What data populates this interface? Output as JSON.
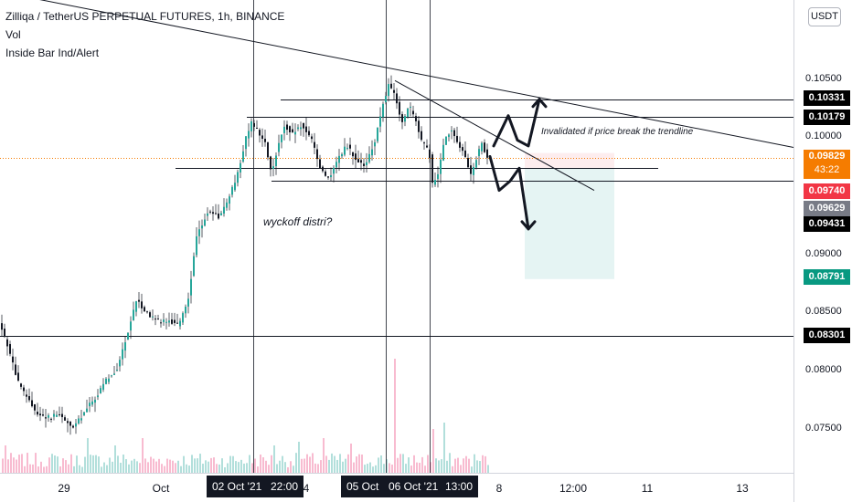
{
  "legend": {
    "symbol_line": "Zilliqa / TetherUS PERPETUAL FUTURES, 1h, BINANCE",
    "indicator_1": "Vol",
    "indicator_2": "Inside Bar Ind/Alert"
  },
  "currency_button": "USDT",
  "colors": {
    "up": "#26a69a",
    "down": "#131722",
    "wick": "#131722",
    "vol_up": "#b2dfdb",
    "vol_down": "#f8bbd0",
    "current_price": "#f57c00",
    "red_tag": "#f23645",
    "green_tag": "#089981",
    "gray_tag": "#787b86",
    "black_tag": "#000000"
  },
  "chart_data": {
    "type": "candlestick",
    "title": "Zilliqa / TetherUS PERPETUAL FUTURES, 1h, BINANCE",
    "ylim": [
      0.0705,
      0.1075
    ],
    "x_tick_labels": [
      "29",
      "Oct",
      "4",
      "8",
      "12:00",
      "11",
      "13"
    ],
    "y_tick_labels": [
      "0.10500",
      "0.10000",
      "0.09500",
      "0.09000",
      "0.08500",
      "0.08000",
      "0.07500"
    ],
    "highlighted_dates": [
      "02 Oct '21",
      "22:00",
      "05 Oct",
      "06 Oct '21",
      "13:00"
    ],
    "price_path": [
      [
        0,
        0.0841
      ],
      [
        8,
        0.0824
      ],
      [
        20,
        0.0791
      ],
      [
        34,
        0.0772
      ],
      [
        44,
        0.0762
      ],
      [
        56,
        0.0761
      ],
      [
        66,
        0.0763
      ],
      [
        80,
        0.0751
      ],
      [
        96,
        0.0769
      ],
      [
        108,
        0.0781
      ],
      [
        118,
        0.0794
      ],
      [
        128,
        0.0802
      ],
      [
        140,
        0.0832
      ],
      [
        150,
        0.0862
      ],
      [
        160,
        0.0851
      ],
      [
        170,
        0.0844
      ],
      [
        186,
        0.0843
      ],
      [
        196,
        0.084
      ],
      [
        206,
        0.0861
      ],
      [
        216,
        0.0918
      ],
      [
        228,
        0.0937
      ],
      [
        240,
        0.0932
      ],
      [
        252,
        0.0951
      ],
      [
        262,
        0.0972
      ],
      [
        270,
        0.1003
      ],
      [
        276,
        0.1013
      ],
      [
        282,
        0.1006
      ],
      [
        291,
        0.0994
      ],
      [
        298,
        0.0968
      ],
      [
        304,
        0.0993
      ],
      [
        312,
        0.1011
      ],
      [
        320,
        0.1003
      ],
      [
        330,
        0.1011
      ],
      [
        340,
        0.1001
      ],
      [
        350,
        0.0976
      ],
      [
        360,
        0.0964
      ],
      [
        370,
        0.0981
      ],
      [
        380,
        0.0994
      ],
      [
        390,
        0.0981
      ],
      [
        400,
        0.0975
      ],
      [
        410,
        0.0996
      ],
      [
        420,
        0.1031
      ],
      [
        426,
        0.1046
      ],
      [
        432,
        0.1037
      ],
      [
        440,
        0.1013
      ],
      [
        448,
        0.1028
      ],
      [
        456,
        0.1012
      ],
      [
        462,
        0.0996
      ],
      [
        470,
        0.0988
      ],
      [
        474,
        0.0958
      ],
      [
        480,
        0.0971
      ],
      [
        486,
        0.0998
      ],
      [
        494,
        0.1006
      ],
      [
        502,
        0.0996
      ],
      [
        510,
        0.0981
      ],
      [
        516,
        0.0968
      ],
      [
        522,
        0.0984
      ],
      [
        528,
        0.0995
      ],
      [
        533,
        0.0983
      ]
    ],
    "volume_spikes": [
      [
        6,
        30
      ],
      [
        96,
        38
      ],
      [
        125,
        30
      ],
      [
        155,
        38
      ],
      [
        300,
        30
      ],
      [
        326,
        34
      ],
      [
        354,
        38
      ],
      [
        382,
        32
      ],
      [
        432,
        125
      ],
      [
        472,
        48
      ],
      [
        486,
        55
      ]
    ],
    "horizontal_levels": [
      {
        "price": 0.1033,
        "x_start": 307,
        "x_end": 868
      },
      {
        "price": 0.10179,
        "x_start": 270,
        "x_end": 868
      },
      {
        "price": 0.0974,
        "x_start": 192,
        "x_end": 720
      },
      {
        "price": 0.09629,
        "x_start": 297,
        "x_end": 868
      },
      {
        "price": 0.08301,
        "x_start": 0,
        "x_end": 868
      }
    ],
    "trendlines": [
      {
        "from": [
          0,
          0.1125
        ],
        "to": [
          868,
          0.09918
        ]
      },
      {
        "from": [
          432,
          0.1049
        ],
        "to": [
          650,
          0.0955
        ]
      }
    ],
    "vertical_markers": [
      277,
      422,
      470
    ],
    "short_position": {
      "x_start": 574,
      "x_end": 672,
      "entry": 0.0974,
      "stop": 0.0987,
      "target": 0.08791
    },
    "arrows": [
      {
        "points": [
          [
            540,
            0.0993
          ],
          [
            556,
            0.1019
          ],
          [
            566,
            0.0998
          ],
          [
            578,
            0.0993
          ],
          [
            590,
            0.1033
          ]
        ],
        "head": "up"
      },
      {
        "points": [
          [
            536,
            0.0984
          ],
          [
            546,
            0.0955
          ],
          [
            558,
            0.0963
          ],
          [
            568,
            0.0974
          ],
          [
            578,
            0.0922
          ]
        ],
        "head": "down"
      }
    ]
  },
  "annotations": {
    "invalidation": "Invalidated if price break the trendline",
    "wyckoff": "wyckoff distri?"
  },
  "price_axis": {
    "ticks": [
      "0.10500",
      "0.10000",
      "0.09500",
      "0.09000",
      "0.08500",
      "0.08000",
      "0.07500"
    ],
    "tags": {
      "level_1": "0.10331",
      "level_2": "0.10179",
      "current": "0.09829",
      "countdown": "43:22",
      "red": "0.09740",
      "gray": "0.09629",
      "level_3": "0.09431",
      "green": "0.08791",
      "level_4": "0.08301"
    }
  },
  "time_axis": {
    "ticks": [
      "29",
      "Oct",
      "4",
      "8",
      "12:00",
      "11",
      "13"
    ],
    "tags": [
      "02 Oct '21",
      "22:00",
      "05 Oct",
      "06 Oct '21",
      "13:00"
    ]
  }
}
